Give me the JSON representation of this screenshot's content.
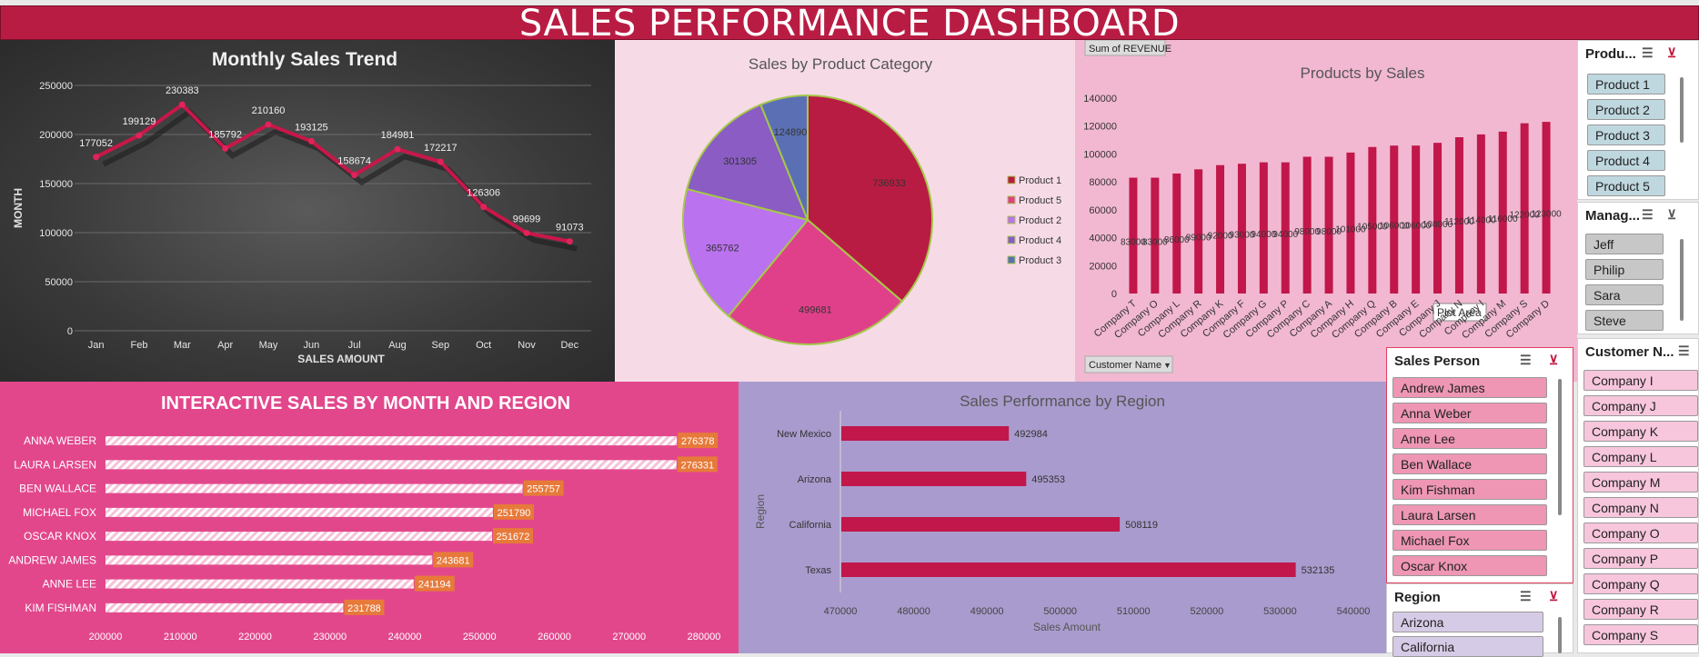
{
  "title": "SALES PERFORMANCE DASHBOARD",
  "colors": {
    "accent": "#b91c43",
    "pink": "#e2478c",
    "dark": "#3a3a3a",
    "lavender": "#a99bcd"
  },
  "monthly": {
    "title": "Monthly Sales Trend",
    "xlabel": "SALES AMOUNT",
    "ylabel": "MONTH"
  },
  "pie": {
    "title": "Sales by Product Category"
  },
  "products": {
    "title": "Products by Sales",
    "field_button": "Sum of REVENUE",
    "axis_button": "Customer Name",
    "tooltip": "Plot Area"
  },
  "interactive": {
    "title": "INTERACTIVE SALES BY MONTH AND REGION"
  },
  "region_chart": {
    "title": "Sales Performance by Region",
    "xlabel": "Sales Amount",
    "ylabel": "Region"
  },
  "slicers": {
    "product": {
      "header": "Produ...",
      "items": [
        "Product 1",
        "Product 2",
        "Product 3",
        "Product 4",
        "Product 5"
      ]
    },
    "manager": {
      "header": "Manag...",
      "items": [
        "Jeff",
        "Philip",
        "Sara",
        "Steve"
      ]
    },
    "customer": {
      "header": "Customer N...",
      "items": [
        "Company I",
        "Company J",
        "Company K",
        "Company L",
        "Company M",
        "Company N",
        "Company O",
        "Company P",
        "Company Q",
        "Company R",
        "Company S"
      ]
    },
    "salesperson": {
      "header": "Sales Person",
      "items": [
        "Andrew James",
        "Anna Weber",
        "Anne Lee",
        "Ben Wallace",
        "Kim Fishman",
        "Laura Larsen",
        "Michael Fox",
        "Oscar Knox"
      ]
    },
    "region": {
      "header": "Region",
      "items": [
        "Arizona",
        "California"
      ]
    }
  },
  "chart_data": [
    {
      "type": "line",
      "title": "Monthly Sales Trend",
      "xlabel": "SALES AMOUNT",
      "ylabel": "MONTH",
      "categories": [
        "Jan",
        "Feb",
        "Mar",
        "Apr",
        "May",
        "Jun",
        "Jul",
        "Aug",
        "Sep",
        "Oct",
        "Nov",
        "Dec"
      ],
      "values": [
        177052,
        199129,
        230383,
        185792,
        210160,
        193125,
        158674,
        184981,
        172217,
        126306,
        99699,
        91073
      ],
      "ylim": [
        0,
        250000
      ],
      "yticks": [
        "0",
        "50000",
        "100000",
        "150000",
        "200000",
        "250000"
      ],
      "grid": true
    },
    {
      "type": "pie",
      "title": "Sales by Product Category",
      "legend_position": "right",
      "slices": [
        {
          "label": "Product 1",
          "value": 736933,
          "color": "#b91c43",
          "shown": "736933"
        },
        {
          "label": "Product 5",
          "value": 499681,
          "color": "#e0408a",
          "shown": "499681"
        },
        {
          "label": "Product 2",
          "value": 365762,
          "color": "#bb72ef",
          "shown": "365762"
        },
        {
          "label": "Product 4",
          "value": 301305,
          "color": "#8a5cc4",
          "shown": "301305"
        },
        {
          "label": "Product 3",
          "value": 124890,
          "color": "#5b70b4",
          "shown": "124890"
        }
      ]
    },
    {
      "type": "bar",
      "title": "Products by Sales",
      "categories": [
        "Company T",
        "Company O",
        "Company L",
        "Company R",
        "Company K",
        "Company F",
        "Company G",
        "Company P",
        "Company C",
        "Company A",
        "Company H",
        "Company Q",
        "Company B",
        "Company E",
        "Company J",
        "Company N",
        "Company I",
        "Company M",
        "Company S",
        "Company D"
      ],
      "values": [
        83000,
        83000,
        86000,
        89000,
        92000,
        93000,
        94000,
        94000,
        98000,
        98000,
        101000,
        105000,
        106000,
        106000,
        108000,
        112000,
        114000,
        116000,
        122000,
        123000
      ],
      "ylim": [
        0,
        140000
      ],
      "yticks": [
        "0",
        "20000",
        "40000",
        "60000",
        "80000",
        "100000",
        "120000",
        "140000"
      ]
    },
    {
      "type": "bar",
      "title": "INTERACTIVE SALES BY MONTH AND REGION",
      "orientation": "horizontal",
      "categories": [
        "ANNA WEBER",
        "LAURA LARSEN",
        "BEN WALLACE",
        "MICHAEL FOX",
        "OSCAR KNOX",
        "ANDREW JAMES",
        "ANNE LEE",
        "KIM FISHMAN"
      ],
      "values": [
        276378,
        276331,
        255757,
        251790,
        251672,
        243681,
        241194,
        231788
      ],
      "xlim": [
        200000,
        280000
      ],
      "xticks": [
        "200000",
        "210000",
        "220000",
        "230000",
        "240000",
        "250000",
        "260000",
        "270000",
        "280000"
      ]
    },
    {
      "type": "bar",
      "title": "Sales Performance by Region",
      "orientation": "horizontal",
      "xlabel": "Sales Amount",
      "ylabel": "Region",
      "categories": [
        "New Mexico",
        "Arizona",
        "California",
        "Texas"
      ],
      "values": [
        492984,
        495353,
        508119,
        532135
      ],
      "xlim": [
        470000,
        540000
      ],
      "xticks": [
        "470000",
        "480000",
        "490000",
        "500000",
        "510000",
        "520000",
        "530000",
        "540000"
      ]
    }
  ]
}
